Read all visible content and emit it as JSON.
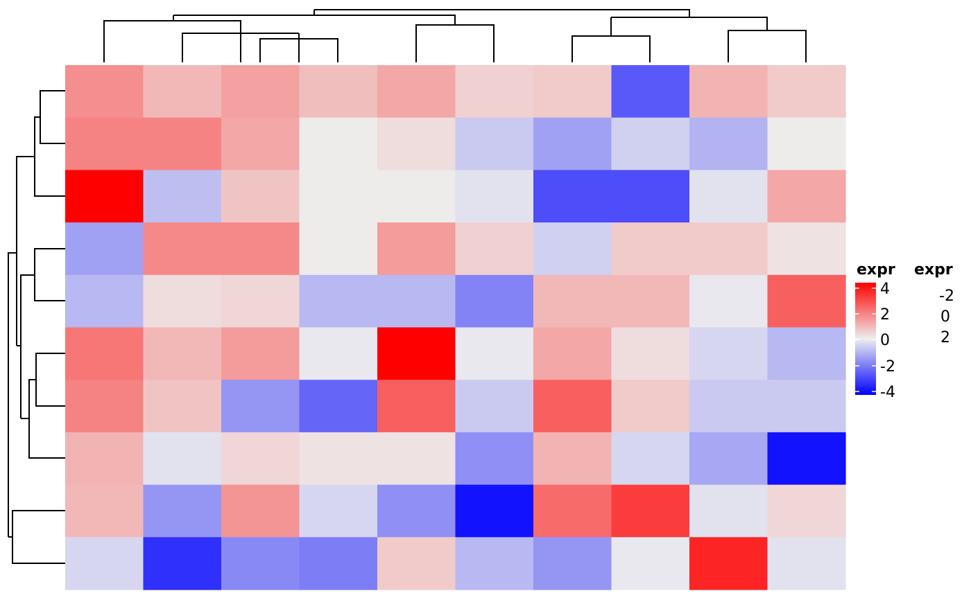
{
  "chart_data": {
    "type": "heatmap",
    "title": "",
    "rows": 10,
    "cols": 10,
    "values": [
      [
        1.6,
        0.9,
        1.3,
        0.8,
        1.2,
        0.5,
        0.6,
        -2.5,
        1.0,
        0.6
      ],
      [
        1.8,
        1.8,
        1.2,
        0.05,
        0.3,
        -0.6,
        -1.3,
        -0.5,
        -1.0,
        0.05
      ],
      [
        4.0,
        -0.8,
        0.7,
        0.05,
        0.05,
        -0.2,
        -2.7,
        -2.7,
        -0.2,
        1.2
      ],
      [
        -1.3,
        1.7,
        1.7,
        0.05,
        1.4,
        0.5,
        -0.5,
        0.6,
        0.6,
        0.2
      ],
      [
        -0.9,
        0.3,
        0.4,
        -0.9,
        -0.9,
        -1.8,
        0.9,
        0.9,
        -0.1,
        2.4
      ],
      [
        2.0,
        0.9,
        1.4,
        -0.1,
        4.0,
        -0.1,
        1.2,
        0.3,
        -0.4,
        -0.9
      ],
      [
        1.8,
        0.7,
        -1.5,
        -2.3,
        2.4,
        -0.6,
        2.4,
        0.6,
        -0.6,
        -0.6
      ],
      [
        1.0,
        -0.2,
        0.4,
        0.2,
        0.2,
        -1.6,
        1.0,
        -0.4,
        -1.2,
        -3.7
      ],
      [
        0.9,
        -1.5,
        1.5,
        -0.4,
        -1.6,
        -3.7,
        2.2,
        3.0,
        -0.2,
        0.4
      ],
      [
        -0.4,
        -3.2,
        -1.7,
        -1.9,
        0.6,
        -0.9,
        -1.5,
        -0.1,
        3.4,
        -0.2
      ]
    ],
    "colors": {
      "low": "#0000ff",
      "mid": "#eeeeee",
      "high": "#ff0000"
    },
    "color_range": [
      -4,
      4
    ],
    "legend": {
      "title": "expr",
      "ticks": [
        "4",
        "2",
        "0",
        "-2",
        "-4"
      ],
      "placement": "right"
    },
    "legend2": {
      "title": "expr",
      "labels": [
        "-2",
        "0",
        "2"
      ]
    },
    "dendrogram_columns": true,
    "dendrogram_rows": true
  }
}
